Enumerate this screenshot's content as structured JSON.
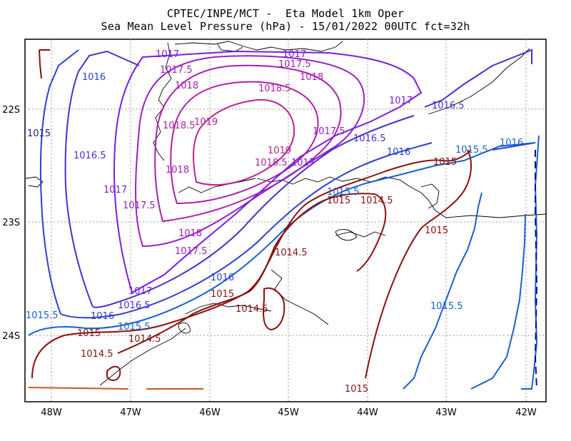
{
  "header": {
    "line1": "CPTEC/INPE/MCT -  Eta Model 1km Oper",
    "line2": "Sea Mean Level Pressure (hPa) - 15/01/2022 00UTC fct=32h"
  },
  "axes": {
    "x_ticks": [
      "48W",
      "47W",
      "46W",
      "45W",
      "44W",
      "43W",
      "42W"
    ],
    "y_ticks": [
      "22S",
      "23S",
      "24S"
    ]
  },
  "contour_labels": [
    {
      "text": "1017",
      "color": "#8a1ee0"
    },
    {
      "text": "1017.5",
      "color": "#9a1fb8"
    },
    {
      "text": "1018",
      "color": "#b020b5"
    },
    {
      "text": "1018.5",
      "color": "#b020a0"
    },
    {
      "text": "1019",
      "color": "#c0209a"
    },
    {
      "text": "1016",
      "color": "#2c3fd0"
    },
    {
      "text": "1016.5",
      "color": "#3b2fc8"
    },
    {
      "text": "1015.5",
      "color": "#1a5fd0"
    },
    {
      "text": "1015",
      "color": "#8b1010"
    },
    {
      "text": "1014.5",
      "color": "#8b1010"
    }
  ]
}
